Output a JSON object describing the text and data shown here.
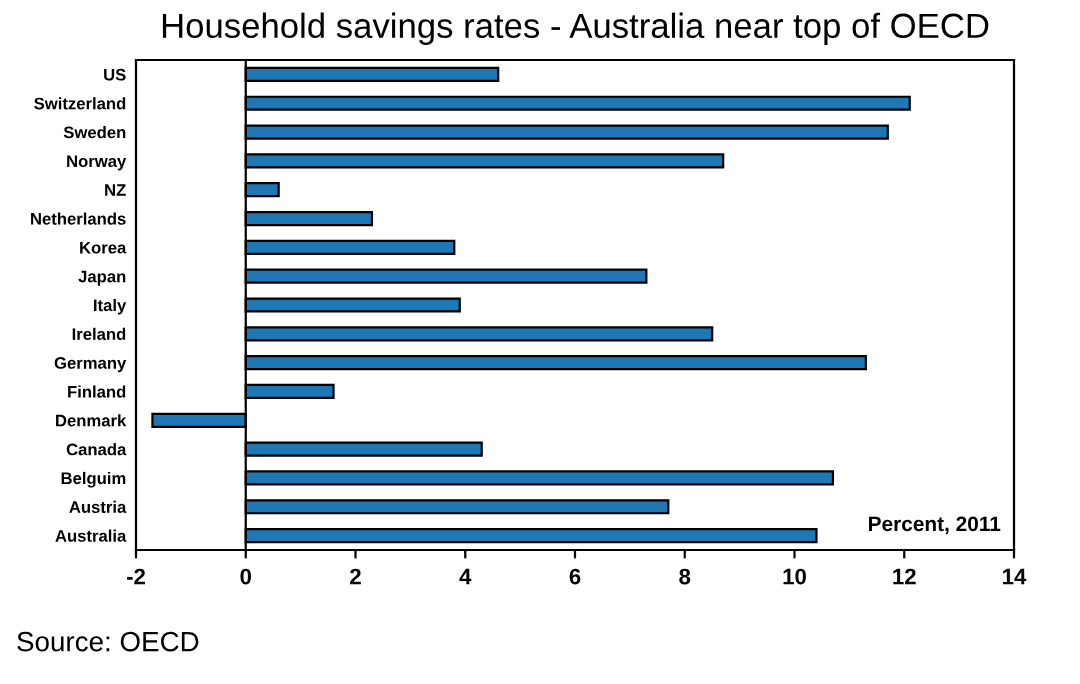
{
  "chart_data": {
    "type": "bar",
    "orientation": "horizontal",
    "title": "Household savings rates - Australia near top of OECD",
    "categories": [
      "US",
      "Switzerland",
      "Sweden",
      "Norway",
      "NZ",
      "Netherlands",
      "Korea",
      "Japan",
      "Italy",
      "Ireland",
      "Germany",
      "Finland",
      "Denmark",
      "Canada",
      "Belguim",
      "Austria",
      "Australia"
    ],
    "values": [
      4.6,
      12.1,
      11.7,
      8.7,
      0.6,
      2.3,
      3.8,
      7.3,
      3.9,
      8.5,
      11.3,
      1.6,
      -1.7,
      4.3,
      10.7,
      7.7,
      10.4
    ],
    "color": "#1f77b4",
    "xlim": [
      -2,
      14
    ],
    "xticks": [
      -2,
      0,
      2,
      4,
      6,
      8,
      10,
      12,
      14
    ],
    "ref_lines": [
      {
        "axis": "x",
        "value": 0,
        "color": "#000000"
      }
    ],
    "annotations": [
      "Percent, 2011",
      "Source: OECD"
    ],
    "grid": false
  }
}
